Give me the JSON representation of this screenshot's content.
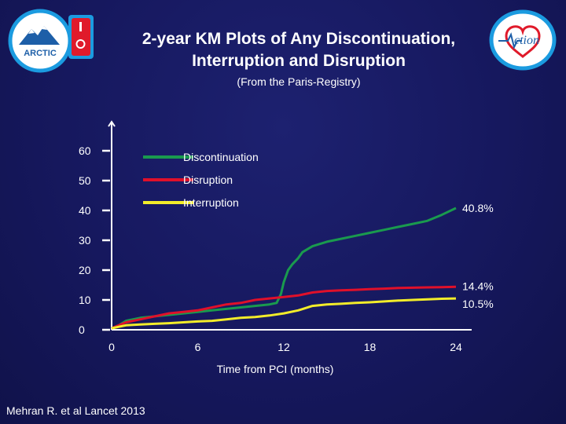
{
  "title_line1": "2-year KM Plots of Any Discontinuation,",
  "title_line2": "Interruption and Disruption",
  "subtitle": "(From the Paris-Registry)",
  "citation": "Mehran R. et al Lancet 2013",
  "logos": {
    "left_text": "ARCTIC",
    "right_text": "ction"
  },
  "colors": {
    "background": "#16185e",
    "discontinuation": "#1a9a4e",
    "disruption": "#e0102a",
    "interruption": "#f2ec2a",
    "axis": "#ffffff",
    "text": "#ffffff"
  },
  "chart_data": {
    "type": "line",
    "xlabel": "Time from PCI (months)",
    "ylabel": "",
    "xlim": [
      0,
      24
    ],
    "ylim": [
      0,
      60
    ],
    "xticks": [
      "0",
      "6",
      "12",
      "18",
      "24"
    ],
    "yticks": [
      "0",
      "10",
      "20",
      "30",
      "40",
      "50",
      "60"
    ],
    "legend_position": "top",
    "series": [
      {
        "name": "Discontinuation",
        "color": "#1a9a4e",
        "end_label": "40.8%",
        "points": [
          [
            0,
            0.5
          ],
          [
            0.5,
            1.5
          ],
          [
            1,
            3
          ],
          [
            2,
            4
          ],
          [
            3,
            4.5
          ],
          [
            4,
            5
          ],
          [
            5,
            5.5
          ],
          [
            6,
            6
          ],
          [
            7,
            6.5
          ],
          [
            8,
            7
          ],
          [
            9,
            7.5
          ],
          [
            10,
            8
          ],
          [
            11,
            8.5
          ],
          [
            11.5,
            9
          ],
          [
            11.8,
            12
          ],
          [
            12,
            16
          ],
          [
            12.3,
            20
          ],
          [
            12.6,
            22
          ],
          [
            13,
            24
          ],
          [
            13.3,
            26
          ],
          [
            14,
            28
          ],
          [
            15,
            29.5
          ],
          [
            16,
            30.5
          ],
          [
            17,
            31.5
          ],
          [
            18,
            32.5
          ],
          [
            19,
            33.5
          ],
          [
            20,
            34.5
          ],
          [
            21,
            35.5
          ],
          [
            22,
            36.5
          ],
          [
            23,
            38.5
          ],
          [
            24,
            40.8
          ]
        ]
      },
      {
        "name": "Disruption",
        "color": "#e0102a",
        "end_label": "14.4%",
        "points": [
          [
            0,
            0.5
          ],
          [
            0.5,
            1.5
          ],
          [
            1,
            2.5
          ],
          [
            2,
            3.5
          ],
          [
            3,
            4.5
          ],
          [
            4,
            5.5
          ],
          [
            5,
            6
          ],
          [
            6,
            6.5
          ],
          [
            7,
            7.5
          ],
          [
            8,
            8.5
          ],
          [
            9,
            9
          ],
          [
            10,
            10
          ],
          [
            11,
            10.5
          ],
          [
            12,
            11
          ],
          [
            13,
            11.5
          ],
          [
            14,
            12.5
          ],
          [
            15,
            13
          ],
          [
            16,
            13.2
          ],
          [
            17,
            13.4
          ],
          [
            18,
            13.6
          ],
          [
            19,
            13.8
          ],
          [
            20,
            14
          ],
          [
            21,
            14.1
          ],
          [
            22,
            14.2
          ],
          [
            23,
            14.3
          ],
          [
            24,
            14.4
          ]
        ]
      },
      {
        "name": "Interruption",
        "color": "#f2ec2a",
        "end_label": "10.5%",
        "points": [
          [
            0,
            0.5
          ],
          [
            0.5,
            1
          ],
          [
            1,
            1.5
          ],
          [
            2,
            1.8
          ],
          [
            3,
            2
          ],
          [
            4,
            2.2
          ],
          [
            5,
            2.5
          ],
          [
            6,
            2.8
          ],
          [
            7,
            3
          ],
          [
            8,
            3.5
          ],
          [
            9,
            4
          ],
          [
            10,
            4.3
          ],
          [
            11,
            4.8
          ],
          [
            12,
            5.5
          ],
          [
            13,
            6.5
          ],
          [
            14,
            8
          ],
          [
            15,
            8.5
          ],
          [
            16,
            8.7
          ],
          [
            17,
            9
          ],
          [
            18,
            9.2
          ],
          [
            19,
            9.5
          ],
          [
            20,
            9.8
          ],
          [
            21,
            10
          ],
          [
            22,
            10.2
          ],
          [
            23,
            10.4
          ],
          [
            24,
            10.5
          ]
        ]
      }
    ]
  }
}
